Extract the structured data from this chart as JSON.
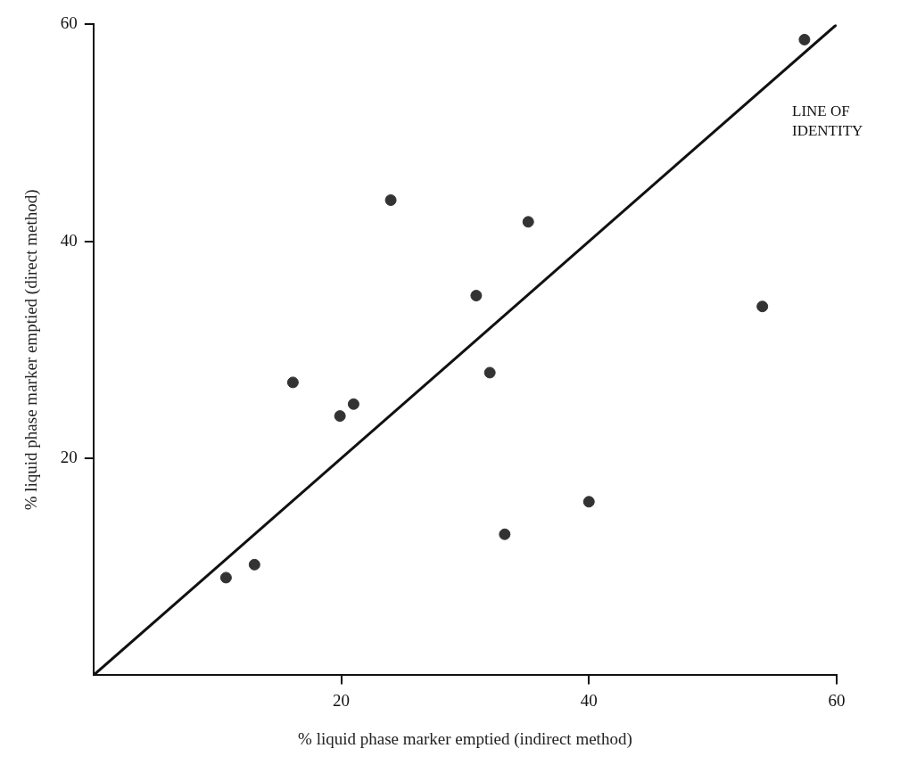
{
  "chart_data": {
    "type": "scatter",
    "xlabel": "% liquid phase marker emptied (indirect method)",
    "ylabel": "% liquid phase marker emptied (direct method)",
    "xlim": [
      0,
      60
    ],
    "ylim": [
      0,
      60
    ],
    "xticks": [
      20,
      40,
      60
    ],
    "yticks": [
      20,
      40,
      60
    ],
    "grid": false,
    "legend": false,
    "series": [
      {
        "type": "scatter",
        "marker": "circle",
        "color": "#333333",
        "x": [
          57.4,
          24.0,
          35.1,
          30.9,
          54.0,
          16.1,
          32.0,
          19.9,
          21.0,
          40.0,
          33.2,
          10.7,
          13.0
        ],
        "values": [
          58.6,
          43.8,
          41.8,
          35.0,
          34.0,
          27.0,
          27.9,
          23.9,
          25.0,
          16.0,
          13.0,
          9.0,
          10.2
        ]
      },
      {
        "type": "line",
        "marker": "none",
        "color": "#111111",
        "x": [
          0,
          60
        ],
        "values": [
          0,
          60
        ]
      }
    ],
    "annotations": [
      "LINE OF IDENTITY"
    ]
  }
}
